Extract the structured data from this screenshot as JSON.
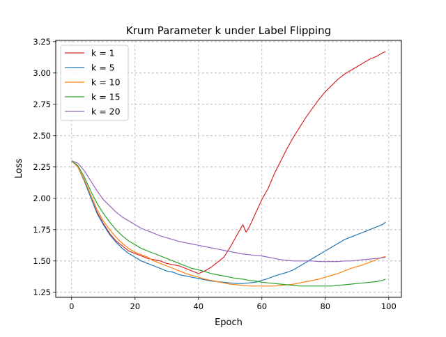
{
  "chart_data": {
    "type": "line",
    "title": "Krum Parameter k under Label Flipping",
    "xlabel": "Epoch",
    "ylabel": "Loss",
    "xlim": [
      -5,
      104
    ],
    "ylim": [
      1.21,
      3.26
    ],
    "xticks": [
      0,
      20,
      40,
      60,
      80,
      100
    ],
    "xtick_labels": [
      "0",
      "20",
      "40",
      "60",
      "80",
      "100"
    ],
    "yticks": [
      1.25,
      1.5,
      1.75,
      2.0,
      2.25,
      2.5,
      2.75,
      3.0,
      3.25
    ],
    "ytick_labels": [
      "1.25",
      "1.50",
      "1.75",
      "2.00",
      "2.25",
      "2.50",
      "2.75",
      "3.00",
      "3.25"
    ],
    "grid": true,
    "legend_position": "top-left",
    "series": [
      {
        "name": "k = 1",
        "color": "#d62728",
        "points": [
          [
            0,
            2.3
          ],
          [
            2,
            2.25
          ],
          [
            4,
            2.14
          ],
          [
            6,
            2.01
          ],
          [
            8,
            1.89
          ],
          [
            10,
            1.8
          ],
          [
            12,
            1.72
          ],
          [
            14,
            1.66
          ],
          [
            16,
            1.62
          ],
          [
            18,
            1.58
          ],
          [
            20,
            1.56
          ],
          [
            22,
            1.54
          ],
          [
            24,
            1.52
          ],
          [
            26,
            1.51
          ],
          [
            28,
            1.5
          ],
          [
            30,
            1.48
          ],
          [
            32,
            1.47
          ],
          [
            34,
            1.46
          ],
          [
            36,
            1.44
          ],
          [
            38,
            1.42
          ],
          [
            40,
            1.4
          ],
          [
            42,
            1.42
          ],
          [
            44,
            1.45
          ],
          [
            46,
            1.49
          ],
          [
            48,
            1.53
          ],
          [
            50,
            1.61
          ],
          [
            52,
            1.7
          ],
          [
            54,
            1.79
          ],
          [
            55,
            1.73
          ],
          [
            56,
            1.77
          ],
          [
            58,
            1.88
          ],
          [
            60,
            1.99
          ],
          [
            62,
            2.08
          ],
          [
            64,
            2.2
          ],
          [
            66,
            2.3
          ],
          [
            68,
            2.4
          ],
          [
            70,
            2.49
          ],
          [
            72,
            2.57
          ],
          [
            74,
            2.65
          ],
          [
            76,
            2.72
          ],
          [
            78,
            2.79
          ],
          [
            80,
            2.85
          ],
          [
            82,
            2.9
          ],
          [
            84,
            2.95
          ],
          [
            86,
            2.99
          ],
          [
            88,
            3.02
          ],
          [
            90,
            3.05
          ],
          [
            92,
            3.08
          ],
          [
            94,
            3.11
          ],
          [
            96,
            3.13
          ],
          [
            98,
            3.16
          ],
          [
            99,
            3.17
          ]
        ]
      },
      {
        "name": "k = 5",
        "color": "#1f77b4",
        "points": [
          [
            0,
            2.3
          ],
          [
            2,
            2.25
          ],
          [
            4,
            2.14
          ],
          [
            6,
            2.01
          ],
          [
            8,
            1.88
          ],
          [
            10,
            1.79
          ],
          [
            12,
            1.71
          ],
          [
            14,
            1.65
          ],
          [
            16,
            1.6
          ],
          [
            18,
            1.56
          ],
          [
            20,
            1.53
          ],
          [
            22,
            1.5
          ],
          [
            24,
            1.48
          ],
          [
            26,
            1.46
          ],
          [
            28,
            1.44
          ],
          [
            30,
            1.42
          ],
          [
            32,
            1.41
          ],
          [
            34,
            1.39
          ],
          [
            36,
            1.38
          ],
          [
            38,
            1.37
          ],
          [
            40,
            1.36
          ],
          [
            42,
            1.35
          ],
          [
            44,
            1.34
          ],
          [
            46,
            1.335
          ],
          [
            48,
            1.33
          ],
          [
            50,
            1.325
          ],
          [
            52,
            1.32
          ],
          [
            54,
            1.32
          ],
          [
            56,
            1.325
          ],
          [
            58,
            1.33
          ],
          [
            60,
            1.345
          ],
          [
            62,
            1.36
          ],
          [
            64,
            1.38
          ],
          [
            66,
            1.395
          ],
          [
            68,
            1.41
          ],
          [
            70,
            1.43
          ],
          [
            72,
            1.46
          ],
          [
            74,
            1.49
          ],
          [
            76,
            1.52
          ],
          [
            78,
            1.55
          ],
          [
            80,
            1.58
          ],
          [
            82,
            1.61
          ],
          [
            84,
            1.64
          ],
          [
            86,
            1.67
          ],
          [
            88,
            1.69
          ],
          [
            90,
            1.71
          ],
          [
            92,
            1.73
          ],
          [
            94,
            1.75
          ],
          [
            96,
            1.77
          ],
          [
            98,
            1.79
          ],
          [
            99,
            1.81
          ]
        ]
      },
      {
        "name": "k = 10",
        "color": "#ff7f0e",
        "points": [
          [
            0,
            2.3
          ],
          [
            2,
            2.25
          ],
          [
            4,
            2.15
          ],
          [
            6,
            2.03
          ],
          [
            8,
            1.91
          ],
          [
            10,
            1.82
          ],
          [
            12,
            1.75
          ],
          [
            14,
            1.69
          ],
          [
            16,
            1.64
          ],
          [
            18,
            1.6
          ],
          [
            20,
            1.57
          ],
          [
            22,
            1.55
          ],
          [
            24,
            1.53
          ],
          [
            26,
            1.5
          ],
          [
            28,
            1.48
          ],
          [
            30,
            1.46
          ],
          [
            32,
            1.44
          ],
          [
            34,
            1.42
          ],
          [
            36,
            1.4
          ],
          [
            38,
            1.385
          ],
          [
            40,
            1.37
          ],
          [
            42,
            1.355
          ],
          [
            44,
            1.345
          ],
          [
            46,
            1.335
          ],
          [
            48,
            1.325
          ],
          [
            50,
            1.315
          ],
          [
            52,
            1.31
          ],
          [
            54,
            1.305
          ],
          [
            56,
            1.3
          ],
          [
            58,
            1.3
          ],
          [
            60,
            1.3
          ],
          [
            62,
            1.3
          ],
          [
            64,
            1.3
          ],
          [
            66,
            1.305
          ],
          [
            68,
            1.31
          ],
          [
            70,
            1.315
          ],
          [
            72,
            1.325
          ],
          [
            74,
            1.335
          ],
          [
            76,
            1.345
          ],
          [
            78,
            1.355
          ],
          [
            80,
            1.37
          ],
          [
            82,
            1.385
          ],
          [
            84,
            1.4
          ],
          [
            86,
            1.42
          ],
          [
            88,
            1.44
          ],
          [
            90,
            1.455
          ],
          [
            92,
            1.47
          ],
          [
            94,
            1.49
          ],
          [
            96,
            1.51
          ],
          [
            98,
            1.53
          ],
          [
            99,
            1.535
          ]
        ]
      },
      {
        "name": "k = 15",
        "color": "#2ca02c",
        "points": [
          [
            0,
            2.3
          ],
          [
            2,
            2.26
          ],
          [
            4,
            2.17
          ],
          [
            6,
            2.06
          ],
          [
            8,
            1.96
          ],
          [
            10,
            1.88
          ],
          [
            12,
            1.81
          ],
          [
            14,
            1.75
          ],
          [
            16,
            1.7
          ],
          [
            18,
            1.66
          ],
          [
            20,
            1.63
          ],
          [
            22,
            1.6
          ],
          [
            24,
            1.58
          ],
          [
            26,
            1.56
          ],
          [
            28,
            1.54
          ],
          [
            30,
            1.52
          ],
          [
            32,
            1.5
          ],
          [
            34,
            1.48
          ],
          [
            36,
            1.46
          ],
          [
            38,
            1.44
          ],
          [
            40,
            1.43
          ],
          [
            42,
            1.415
          ],
          [
            44,
            1.4
          ],
          [
            46,
            1.39
          ],
          [
            48,
            1.38
          ],
          [
            50,
            1.37
          ],
          [
            52,
            1.36
          ],
          [
            54,
            1.355
          ],
          [
            56,
            1.345
          ],
          [
            58,
            1.34
          ],
          [
            60,
            1.33
          ],
          [
            62,
            1.325
          ],
          [
            64,
            1.32
          ],
          [
            66,
            1.315
          ],
          [
            68,
            1.31
          ],
          [
            70,
            1.305
          ],
          [
            72,
            1.3
          ],
          [
            74,
            1.3
          ],
          [
            76,
            1.3
          ],
          [
            78,
            1.3
          ],
          [
            80,
            1.3
          ],
          [
            82,
            1.3
          ],
          [
            84,
            1.305
          ],
          [
            86,
            1.31
          ],
          [
            88,
            1.315
          ],
          [
            90,
            1.32
          ],
          [
            92,
            1.325
          ],
          [
            94,
            1.33
          ],
          [
            96,
            1.335
          ],
          [
            98,
            1.345
          ],
          [
            99,
            1.355
          ]
        ]
      },
      {
        "name": "k = 20",
        "color": "#9467bd",
        "points": [
          [
            0,
            2.3
          ],
          [
            2,
            2.28
          ],
          [
            4,
            2.22
          ],
          [
            6,
            2.14
          ],
          [
            8,
            2.06
          ],
          [
            10,
            1.99
          ],
          [
            12,
            1.94
          ],
          [
            14,
            1.89
          ],
          [
            16,
            1.85
          ],
          [
            18,
            1.82
          ],
          [
            20,
            1.79
          ],
          [
            22,
            1.76
          ],
          [
            24,
            1.74
          ],
          [
            26,
            1.72
          ],
          [
            28,
            1.7
          ],
          [
            30,
            1.685
          ],
          [
            32,
            1.67
          ],
          [
            34,
            1.655
          ],
          [
            36,
            1.645
          ],
          [
            38,
            1.635
          ],
          [
            40,
            1.625
          ],
          [
            42,
            1.615
          ],
          [
            44,
            1.605
          ],
          [
            46,
            1.595
          ],
          [
            48,
            1.585
          ],
          [
            50,
            1.575
          ],
          [
            52,
            1.565
          ],
          [
            54,
            1.555
          ],
          [
            56,
            1.55
          ],
          [
            58,
            1.545
          ],
          [
            60,
            1.54
          ],
          [
            62,
            1.53
          ],
          [
            64,
            1.52
          ],
          [
            66,
            1.51
          ],
          [
            68,
            1.505
          ],
          [
            70,
            1.5
          ],
          [
            72,
            1.5
          ],
          [
            74,
            1.5
          ],
          [
            76,
            1.5
          ],
          [
            78,
            1.495
          ],
          [
            80,
            1.495
          ],
          [
            82,
            1.495
          ],
          [
            84,
            1.495
          ],
          [
            86,
            1.5
          ],
          [
            88,
            1.5
          ],
          [
            90,
            1.505
          ],
          [
            92,
            1.51
          ],
          [
            94,
            1.515
          ],
          [
            96,
            1.52
          ],
          [
            98,
            1.525
          ],
          [
            99,
            1.53
          ]
        ]
      }
    ]
  }
}
